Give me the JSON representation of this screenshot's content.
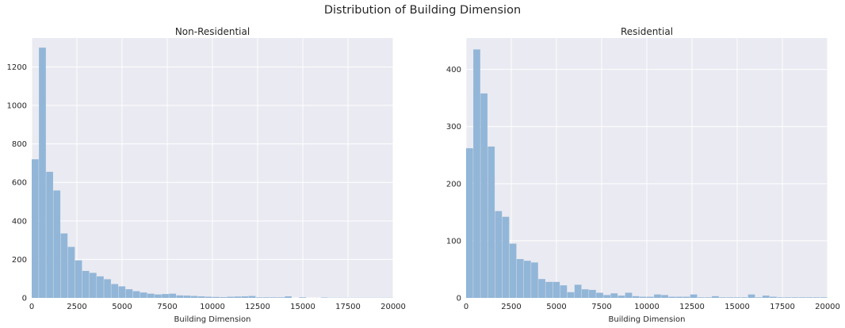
{
  "figure": {
    "title": "Distribution of Building Dimension"
  },
  "chart_data": [
    {
      "type": "bar",
      "title": "Non-Residential",
      "xlabel": "Building Dimension",
      "ylabel": "",
      "xlim": [
        0,
        20000
      ],
      "ylim": [
        0,
        1350
      ],
      "xticks": [
        0,
        2500,
        5000,
        7500,
        10000,
        12500,
        15000,
        17500,
        20000
      ],
      "yticks": [
        0,
        200,
        400,
        600,
        800,
        1000,
        1200
      ],
      "grid": true,
      "bin_width": 400,
      "bar_color": "#92b6d7",
      "series": [
        {
          "values": [
            720,
            1300,
            655,
            558,
            335,
            265,
            195,
            140,
            130,
            112,
            97,
            72,
            60,
            45,
            35,
            28,
            22,
            18,
            20,
            22,
            13,
            12,
            10,
            8,
            6,
            5,
            4,
            6,
            7,
            8,
            10,
            3,
            3,
            3,
            3,
            8,
            0,
            3,
            0,
            0,
            2,
            1,
            1,
            1,
            1,
            1,
            1,
            1,
            1,
            1
          ]
        }
      ]
    },
    {
      "type": "bar",
      "title": "Residential",
      "xlabel": "Building Dimension",
      "ylabel": "",
      "xlim": [
        0,
        20000
      ],
      "ylim": [
        0,
        455
      ],
      "xticks": [
        0,
        2500,
        5000,
        7500,
        10000,
        12500,
        15000,
        17500,
        20000
      ],
      "yticks": [
        0,
        100,
        200,
        300,
        400
      ],
      "grid": true,
      "bin_width": 400,
      "bar_color": "#92b6d7",
      "series": [
        {
          "values": [
            262,
            435,
            358,
            265,
            152,
            142,
            95,
            68,
            65,
            62,
            33,
            28,
            28,
            22,
            10,
            23,
            15,
            14,
            9,
            5,
            8,
            4,
            9,
            3,
            2,
            2,
            6,
            5,
            2,
            2,
            2,
            6,
            1,
            1,
            3,
            1,
            1,
            1,
            1,
            6,
            1,
            4,
            2,
            1,
            1,
            1,
            1,
            1,
            1,
            1
          ]
        }
      ]
    }
  ]
}
